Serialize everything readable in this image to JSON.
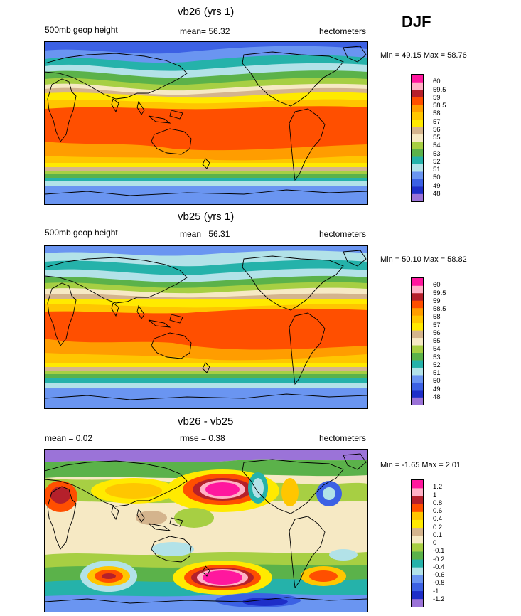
{
  "season": "DJF",
  "colors": {
    "geo": [
      "#9b73d8",
      "#1e2ec8",
      "#3c61e4",
      "#6a95f1",
      "#b2e2e8",
      "#25b2aa",
      "#5bb24a",
      "#a7cf43",
      "#f6e9c4",
      "#d4b48d",
      "#ffea00",
      "#ffc600",
      "#ff9d00",
      "#ff4f00",
      "#b5202b",
      "#ffb1c6",
      "#ff179e"
    ],
    "diff": [
      "#9b73d8",
      "#1e2ec8",
      "#3c61e4",
      "#6a95f1",
      "#b2e2e8",
      "#25b2aa",
      "#5bb24a",
      "#a7cf43",
      "#f6e9c4",
      "#d4b48d",
      "#ffea00",
      "#ffc600",
      "#ff4f00",
      "#b5202b",
      "#ffb1c6",
      "#ff179e"
    ]
  },
  "chart_data": [
    {
      "type": "heatmap",
      "title": "vb26 (yrs 1)",
      "left_subtitle": "500mb geop height",
      "stat": "mean=  56.32",
      "units": "hectometers",
      "minmax": "Min =  49.15 Max =  58.76",
      "min": 49.15,
      "max": 58.76,
      "mean": 56.32,
      "contour_levels": [
        "48",
        "49",
        "50",
        "51",
        "52",
        "53",
        "54",
        "55",
        "56",
        "57",
        "58",
        "58.5",
        "59",
        "59.5",
        "60"
      ]
    },
    {
      "type": "heatmap",
      "title": "vb25 (yrs 1)",
      "left_subtitle": "500mb geop height",
      "stat": "mean=  56.31",
      "units": "hectometers",
      "minmax": "Min =  50.10 Max =  58.82",
      "min": 50.1,
      "max": 58.82,
      "mean": 56.31,
      "contour_levels": [
        "48",
        "49",
        "50",
        "51",
        "52",
        "53",
        "54",
        "55",
        "56",
        "57",
        "58",
        "58.5",
        "59",
        "59.5",
        "60"
      ]
    },
    {
      "type": "heatmap",
      "title": "vb26 - vb25",
      "left_subtitle": "mean =   0.02",
      "stat": "rmse =   0.38",
      "units": "hectometers",
      "minmax": "Min =  -1.65 Max =   2.01",
      "min": -1.65,
      "max": 2.01,
      "mean": 0.02,
      "rmse": 0.38,
      "contour_levels": [
        "-1.2",
        "-1",
        "-0.8",
        "-0.6",
        "-0.4",
        "-0.2",
        "-0.1",
        "0",
        "0.1",
        "0.2",
        "0.4",
        "0.6",
        "0.8",
        "1",
        "1.2"
      ]
    }
  ]
}
